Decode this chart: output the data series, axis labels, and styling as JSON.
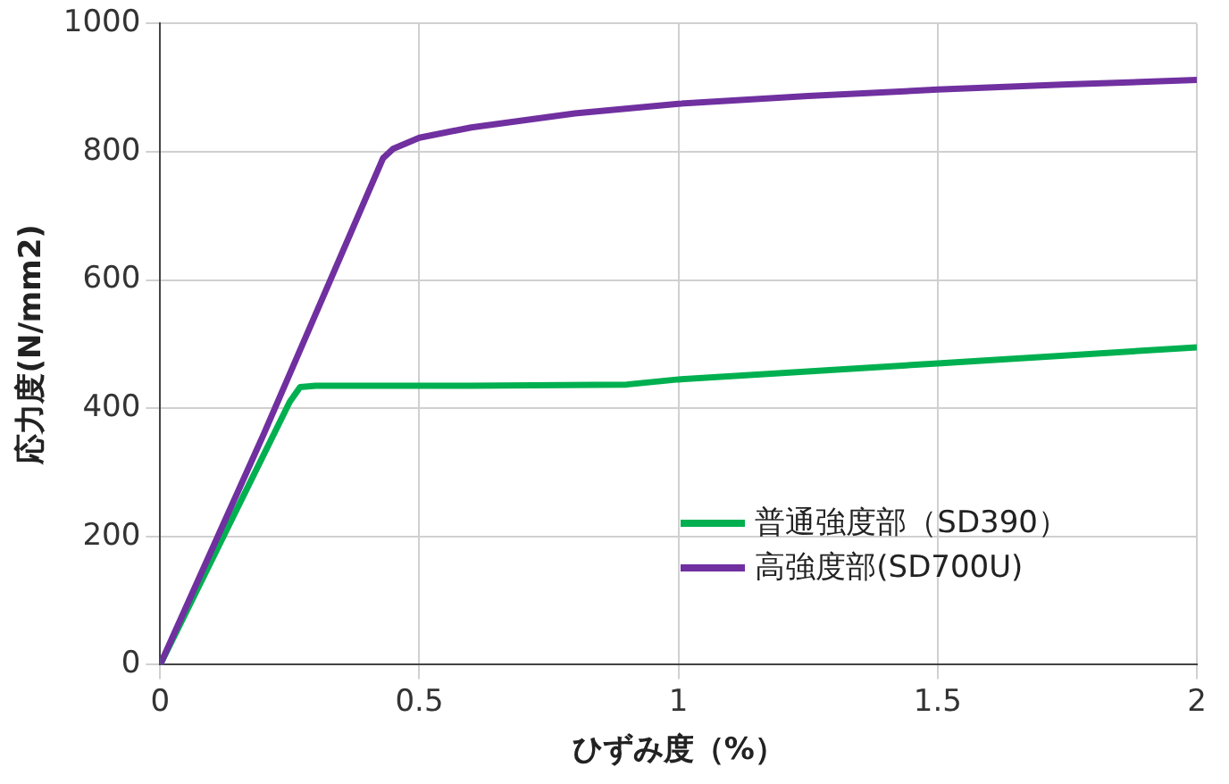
{
  "chart_data": {
    "type": "line",
    "xlabel": "ひずみ度（%）",
    "ylabel": "応力度(N/mm2)",
    "xlim": [
      0,
      2
    ],
    "xticks": [
      0,
      0.5,
      1,
      1.5,
      2
    ],
    "ylim": [
      0,
      1000
    ],
    "yticks": [
      0,
      200,
      400,
      600,
      800,
      1000
    ],
    "grid": true,
    "legend": "bottom right",
    "marker": "none",
    "line_style": "solid",
    "series": [
      {
        "name": "普通強度部（SD390）",
        "color": "#00b050",
        "x": [
          0,
          0.25,
          0.27,
          0.3,
          0.6,
          0.9,
          1.0,
          1.5,
          2
        ],
        "values": [
          0,
          410,
          433,
          435,
          435,
          437,
          445,
          470,
          495
        ]
      },
      {
        "name": "高強度部(SD700U)",
        "color": "#7030a0",
        "x": [
          0,
          0.2,
          0.43,
          0.45,
          0.5,
          0.6,
          0.8,
          1.0,
          1.25,
          1.5,
          1.75,
          2
        ],
        "values": [
          0,
          360,
          790,
          805,
          822,
          838,
          860,
          875,
          887,
          897,
          905,
          912
        ]
      }
    ]
  }
}
